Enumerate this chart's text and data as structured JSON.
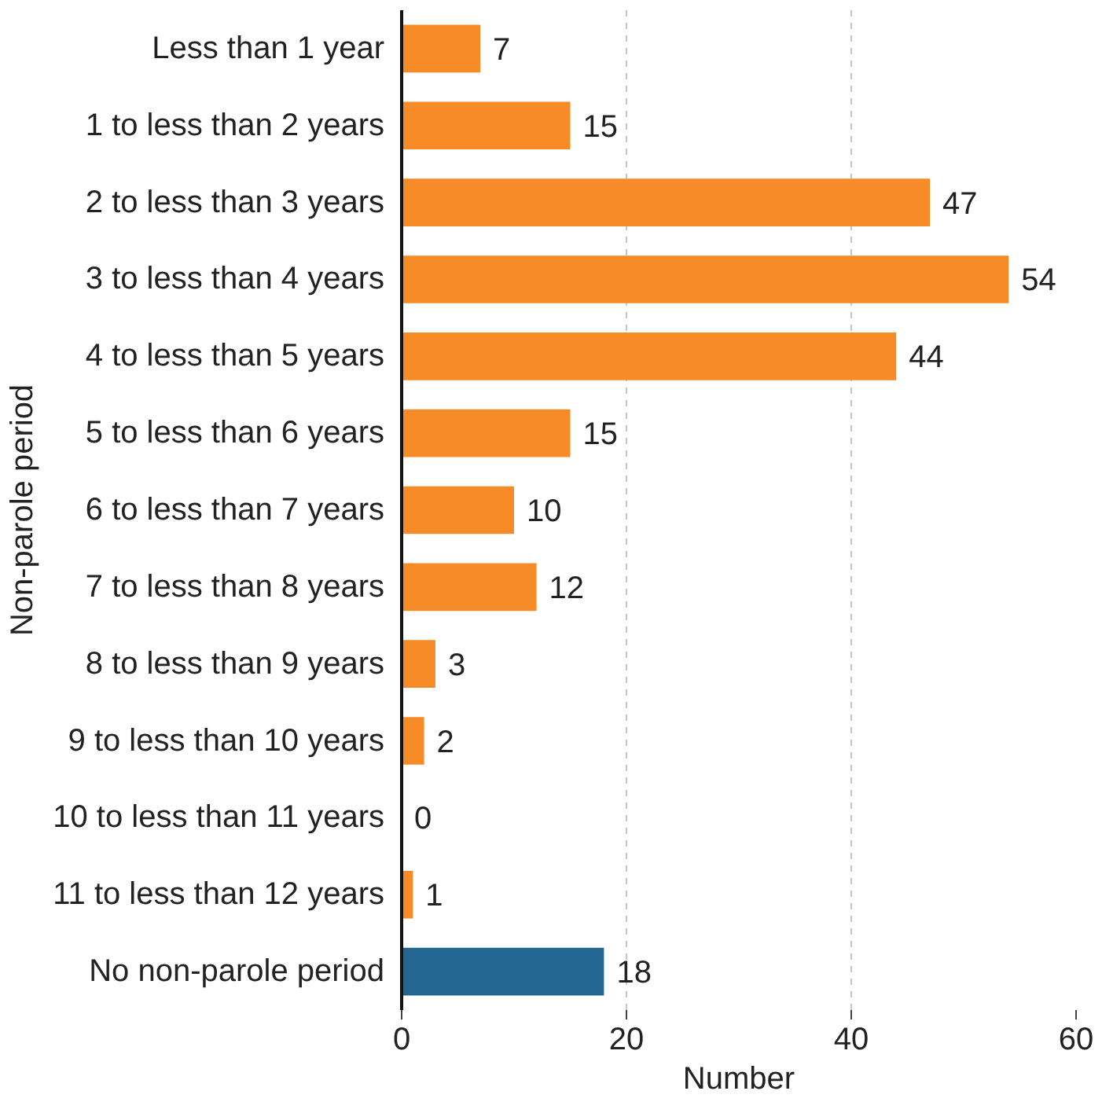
{
  "chart_data": {
    "type": "bar",
    "orientation": "horizontal",
    "xlabel": "Number",
    "ylabel": "Non-parole period",
    "categories": [
      "Less than 1 year",
      "1 to less than 2 years",
      "2 to less than 3 years",
      "3 to less than 4 years",
      "4 to less than 5 years",
      "5 to less than 6 years",
      "6 to less than 7 years",
      "7 to less than 8 years",
      "8 to less than 9 years",
      "9 to less than 10 years",
      "10 to less than 11 years",
      "11 to less than 12 years",
      "No non-parole period"
    ],
    "values": [
      7,
      15,
      47,
      54,
      44,
      15,
      10,
      12,
      3,
      2,
      0,
      1,
      18
    ],
    "colors": [
      "#f68b28",
      "#f68b28",
      "#f68b28",
      "#f68b28",
      "#f68b28",
      "#f68b28",
      "#f68b28",
      "#f68b28",
      "#f68b28",
      "#f68b28",
      "#f68b28",
      "#f68b28",
      "#246692"
    ],
    "xlim": [
      0,
      60
    ],
    "xticks": [
      0,
      20,
      40,
      60
    ],
    "grid": "x",
    "data_labels": true
  }
}
